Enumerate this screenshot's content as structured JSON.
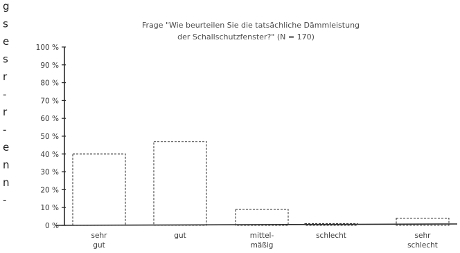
{
  "page": {
    "margin_letters": [
      "g",
      "s",
      "e",
      "s",
      "r",
      "-",
      "r",
      "-",
      "e",
      "n",
      "n",
      "-"
    ]
  },
  "chart_data": {
    "type": "bar",
    "title": "Frage \"Wie beurteilen Sie die tatsächliche Dämmleistung",
    "subtitle": "der Schallschutzfenster?\" (N = 170)",
    "xlabel": "",
    "ylabel": "",
    "ylim": [
      0,
      100
    ],
    "y_ticks": [
      {
        "value": 0,
        "label": "0 %"
      },
      {
        "value": 10,
        "label": "10 %"
      },
      {
        "value": 20,
        "label": "20 %"
      },
      {
        "value": 30,
        "label": "30 %"
      },
      {
        "value": 40,
        "label": "40 %"
      },
      {
        "value": 50,
        "label": "50 %"
      },
      {
        "value": 60,
        "label": "60 %"
      },
      {
        "value": 70,
        "label": "70 %"
      },
      {
        "value": 80,
        "label": "80 %"
      },
      {
        "value": 90,
        "label": "90 %"
      },
      {
        "value": 100,
        "label": "100 %"
      }
    ],
    "categories": [
      [
        "sehr",
        "gut"
      ],
      [
        "gut"
      ],
      [
        "mittel-",
        "mäßig"
      ],
      [
        "schlecht"
      ],
      [
        "sehr",
        "schlecht"
      ]
    ],
    "values": [
      40,
      47,
      9,
      1,
      4
    ],
    "grid": false,
    "bar_style": "dashed outline",
    "colors": {
      "axis": "#2a2a2a",
      "bar_stroke": "#3a3a3a",
      "text": "#3a3a3a"
    }
  }
}
